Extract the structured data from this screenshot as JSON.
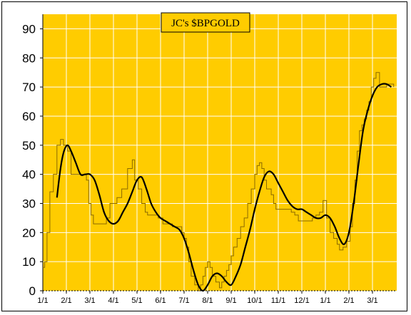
{
  "chart_data": {
    "type": "line",
    "title": "JC's $BPGOLD",
    "xlabel": "",
    "ylabel": "",
    "ylim": [
      0,
      95
    ],
    "yticks": [
      0,
      10,
      20,
      30,
      40,
      50,
      60,
      70,
      80,
      90
    ],
    "xticks": [
      "1/1",
      "2/1",
      "3/1",
      "4/1",
      "5/1",
      "6/1",
      "7/1",
      "8/1",
      "9/1",
      "10/1",
      "11/1",
      "12/1",
      "1/1",
      "2/1",
      "3/1"
    ],
    "grid": true,
    "legend": "none",
    "colors": {
      "plot_background": "#ffcc00",
      "grid": "#ffffff",
      "raw_series": "#8a6a00",
      "smooth_series": "#000000",
      "title_box": "#ffcc00"
    },
    "series": [
      {
        "style": "step",
        "x": [
          0.0,
          0.08,
          0.18,
          0.3,
          0.45,
          0.6,
          0.75,
          0.88,
          1.05,
          1.2,
          1.25,
          1.35,
          1.5,
          1.7,
          1.85,
          1.95,
          2.05,
          2.15,
          2.3,
          2.45,
          2.55,
          2.7,
          2.85,
          3.0,
          3.15,
          3.35,
          3.6,
          3.8,
          3.9,
          4.05,
          4.2,
          4.35,
          4.45,
          4.55,
          4.65,
          4.75,
          4.9,
          5.1,
          5.3,
          5.5,
          5.7,
          5.9,
          6.0,
          6.1,
          6.2,
          6.3,
          6.45,
          6.6,
          6.7,
          6.8,
          6.9,
          7.0,
          7.1,
          7.2,
          7.35,
          7.5,
          7.6,
          7.7,
          7.8,
          7.9,
          8.0,
          8.1,
          8.25,
          8.4,
          8.55,
          8.7,
          8.85,
          9.0,
          9.1,
          9.2,
          9.3,
          9.4,
          9.5,
          9.6,
          9.7,
          9.8,
          9.9,
          10.0,
          10.1,
          10.25,
          10.4,
          10.55,
          10.7,
          10.85,
          11.0,
          11.15,
          11.3,
          11.45,
          11.6,
          11.75,
          11.9,
          12.05,
          12.2,
          12.35,
          12.5,
          12.6,
          12.75,
          12.9,
          13.05,
          13.15,
          13.25,
          13.35,
          13.45,
          13.55,
          13.65,
          13.75,
          13.85,
          13.95,
          14.05,
          14.15,
          14.3,
          14.45,
          14.6,
          14.75,
          14.9
        ],
        "values": [
          8,
          10,
          20,
          34,
          40,
          50,
          52,
          50,
          48,
          40,
          40,
          40,
          40,
          40,
          38,
          30,
          26,
          23,
          23,
          23,
          23,
          25,
          30,
          30,
          32,
          35,
          42,
          45,
          38,
          35,
          30,
          27,
          26,
          26,
          26,
          26,
          25,
          23,
          23,
          22,
          22,
          20,
          18,
          15,
          10,
          5,
          2,
          0,
          2,
          5,
          8,
          10,
          8,
          5,
          3,
          1,
          3,
          5,
          7,
          9,
          12,
          15,
          18,
          22,
          25,
          30,
          35,
          40,
          43,
          44,
          42,
          38,
          35,
          35,
          33,
          30,
          28,
          28,
          28,
          28,
          28,
          27,
          26,
          24,
          24,
          24,
          24,
          25,
          26,
          27,
          31,
          25,
          20,
          18,
          16,
          14,
          15,
          17,
          22,
          30,
          38,
          48,
          55,
          57,
          59,
          62,
          65,
          70,
          73,
          75,
          70,
          70,
          71,
          71,
          70
        ]
      },
      {
        "style": "smooth",
        "x": [
          0.6,
          0.75,
          0.9,
          1.05,
          1.2,
          1.4,
          1.6,
          1.8,
          2.0,
          2.2,
          2.4,
          2.6,
          2.8,
          3.0,
          3.2,
          3.4,
          3.6,
          3.8,
          4.0,
          4.2,
          4.4,
          4.6,
          4.8,
          5.0,
          5.2,
          5.4,
          5.6,
          5.8,
          6.0,
          6.2,
          6.4,
          6.6,
          6.8,
          7.0,
          7.2,
          7.4,
          7.6,
          7.8,
          8.0,
          8.2,
          8.4,
          8.6,
          8.8,
          9.0,
          9.2,
          9.4,
          9.6,
          9.8,
          10.0,
          10.2,
          10.4,
          10.6,
          10.8,
          11.0,
          11.2,
          11.4,
          11.6,
          11.8,
          12.0,
          12.2,
          12.4,
          12.6,
          12.8,
          13.0,
          13.2,
          13.4,
          13.6,
          13.8,
          14.0,
          14.2,
          14.4,
          14.6,
          14.8
        ],
        "values": [
          32,
          42,
          48,
          50,
          48,
          44,
          40,
          40,
          40,
          38,
          33,
          27,
          24,
          23,
          24,
          27,
          30,
          34,
          38,
          39,
          35,
          30,
          27,
          25,
          24,
          23,
          22,
          21,
          18,
          13,
          7,
          2,
          0,
          2,
          5,
          6,
          5,
          3,
          2,
          5,
          9,
          15,
          21,
          28,
          34,
          39,
          41,
          40,
          37,
          34,
          31,
          29,
          28,
          28,
          27,
          26,
          25,
          25,
          26,
          25,
          22,
          18,
          16,
          20,
          30,
          43,
          55,
          62,
          67,
          70,
          71,
          71,
          70
        ]
      }
    ]
  }
}
